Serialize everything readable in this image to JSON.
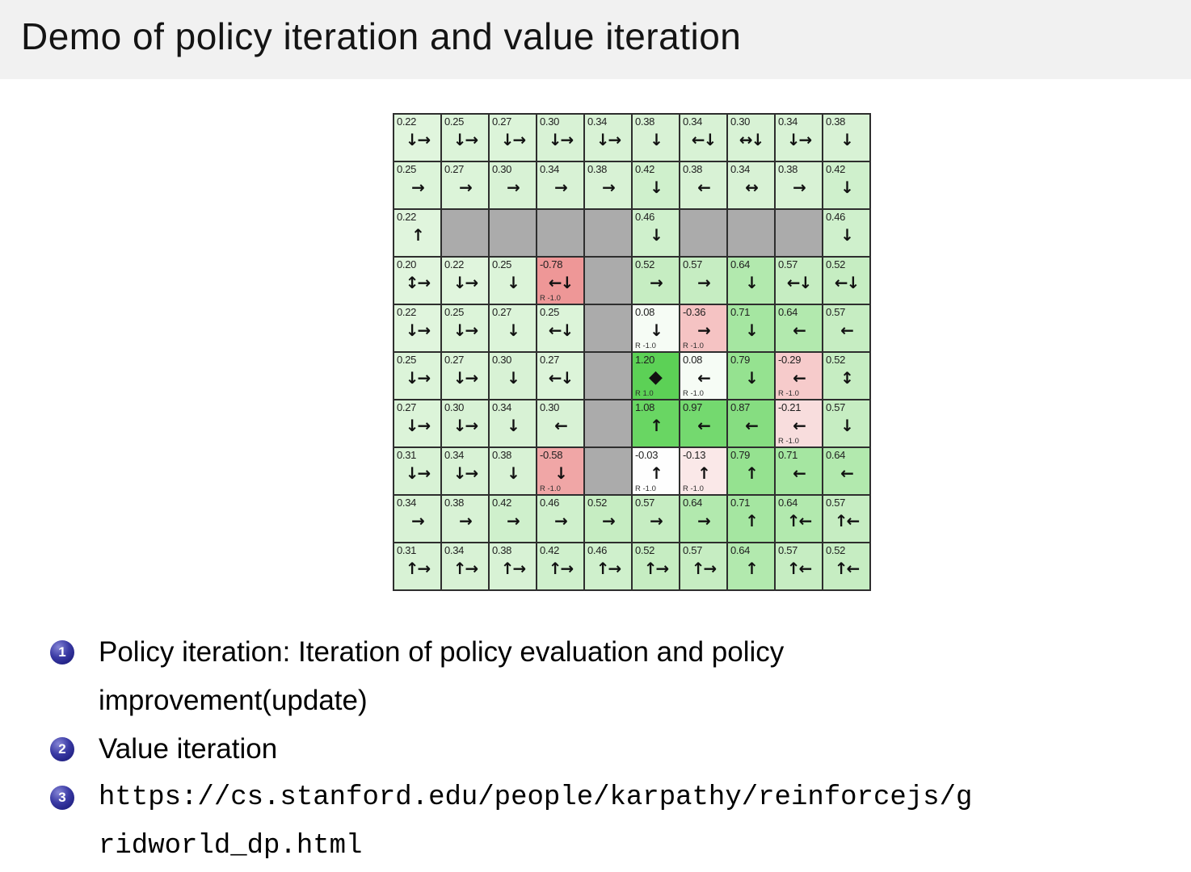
{
  "title": "Demo of policy iteration and value iteration",
  "bullets": [
    {
      "num": "1",
      "text": "Policy iteration: Iteration of policy evaluation and policy improvement(update)"
    },
    {
      "num": "2",
      "text": "Value iteration"
    },
    {
      "num": "3",
      "text": "https://cs.stanford.edu/people/karpathy/reinforcejs/gridworld_dp.html"
    }
  ],
  "colors": {
    "title_bar_bg": "#f1f1f1",
    "slide_bg": "#ffffff",
    "badge_blue": "#2b2b8f",
    "wall_gray": "#ababab",
    "grid_border": "#2e2e2e",
    "goal_green": "#5cd156",
    "penalty_red": "#ee9797"
  },
  "grid": {
    "rows": 10,
    "cols": 10,
    "cells": [
      {
        "v": "0.22",
        "a": [
          "down",
          "right"
        ],
        "bg": "#e0f5dd"
      },
      {
        "v": "0.25",
        "a": [
          "down",
          "right"
        ],
        "bg": "#dcf4d9"
      },
      {
        "v": "0.27",
        "a": [
          "down",
          "right"
        ],
        "bg": "#dcf4d9"
      },
      {
        "v": "0.30",
        "a": [
          "down",
          "right"
        ],
        "bg": "#d8f2d5"
      },
      {
        "v": "0.34",
        "a": [
          "down",
          "right"
        ],
        "bg": "#d8f2d5"
      },
      {
        "v": "0.38",
        "a": [
          "down"
        ],
        "bg": "#d8f2d5"
      },
      {
        "v": "0.34",
        "a": [
          "left",
          "down"
        ],
        "bg": "#d8f2d5"
      },
      {
        "v": "0.30",
        "a": [
          "left",
          "right",
          "down"
        ],
        "bg": "#d8f2d5"
      },
      {
        "v": "0.34",
        "a": [
          "down",
          "right"
        ],
        "bg": "#d8f2d5"
      },
      {
        "v": "0.38",
        "a": [
          "down"
        ],
        "bg": "#d8f2d5"
      },
      {
        "v": "0.25",
        "a": [
          "right"
        ],
        "bg": "#dcf4d9"
      },
      {
        "v": "0.27",
        "a": [
          "right"
        ],
        "bg": "#dcf4d9"
      },
      {
        "v": "0.30",
        "a": [
          "right"
        ],
        "bg": "#d8f2d5"
      },
      {
        "v": "0.34",
        "a": [
          "right"
        ],
        "bg": "#d8f2d5"
      },
      {
        "v": "0.38",
        "a": [
          "right"
        ],
        "bg": "#d8f2d5"
      },
      {
        "v": "0.42",
        "a": [
          "down"
        ],
        "bg": "#cff0cc"
      },
      {
        "v": "0.38",
        "a": [
          "left"
        ],
        "bg": "#d8f2d5"
      },
      {
        "v": "0.34",
        "a": [
          "left",
          "right"
        ],
        "bg": "#d8f2d5"
      },
      {
        "v": "0.38",
        "a": [
          "right"
        ],
        "bg": "#d8f2d5"
      },
      {
        "v": "0.42",
        "a": [
          "down"
        ],
        "bg": "#cff0cc"
      },
      {
        "v": "0.22",
        "a": [
          "up"
        ],
        "bg": "#e0f5dd"
      },
      {
        "wall": true,
        "bg": "#ababab"
      },
      {
        "wall": true,
        "bg": "#ababab"
      },
      {
        "wall": true,
        "bg": "#ababab"
      },
      {
        "wall": true,
        "bg": "#ababab"
      },
      {
        "v": "0.46",
        "a": [
          "down"
        ],
        "bg": "#cff0cc"
      },
      {
        "wall": true,
        "bg": "#ababab"
      },
      {
        "wall": true,
        "bg": "#ababab"
      },
      {
        "wall": true,
        "bg": "#ababab"
      },
      {
        "v": "0.46",
        "a": [
          "down"
        ],
        "bg": "#cff0cc"
      },
      {
        "v": "0.20",
        "a": [
          "up",
          "down",
          "right"
        ],
        "bg": "#e0f5dd"
      },
      {
        "v": "0.22",
        "a": [
          "down",
          "right"
        ],
        "bg": "#e0f5dd"
      },
      {
        "v": "0.25",
        "a": [
          "down"
        ],
        "bg": "#dcf4d9"
      },
      {
        "v": "-0.78",
        "a": [
          "left",
          "down"
        ],
        "r": "R -1.0",
        "bg": "#ee9797"
      },
      {
        "wall": true,
        "bg": "#ababab"
      },
      {
        "v": "0.52",
        "a": [
          "right"
        ],
        "bg": "#c6edc2"
      },
      {
        "v": "0.57",
        "a": [
          "right"
        ],
        "bg": "#c6edc2"
      },
      {
        "v": "0.64",
        "a": [
          "down"
        ],
        "bg": "#b2e9ae"
      },
      {
        "v": "0.57",
        "a": [
          "left",
          "down"
        ],
        "bg": "#c6edc2"
      },
      {
        "v": "0.52",
        "a": [
          "left",
          "down"
        ],
        "bg": "#c6edc2"
      },
      {
        "v": "0.22",
        "a": [
          "down",
          "right"
        ],
        "bg": "#e0f5dd"
      },
      {
        "v": "0.25",
        "a": [
          "down",
          "right"
        ],
        "bg": "#dcf4d9"
      },
      {
        "v": "0.27",
        "a": [
          "down"
        ],
        "bg": "#dcf4d9"
      },
      {
        "v": "0.25",
        "a": [
          "left",
          "down"
        ],
        "bg": "#dcf4d9"
      },
      {
        "wall": true,
        "bg": "#ababab"
      },
      {
        "v": "0.08",
        "a": [
          "down"
        ],
        "r": "R -1.0",
        "bg": "#f6fcf5"
      },
      {
        "v": "-0.36",
        "a": [
          "right"
        ],
        "r": "R -1.0",
        "bg": "#f5c3c3"
      },
      {
        "v": "0.71",
        "a": [
          "down"
        ],
        "bg": "#a5e6a1"
      },
      {
        "v": "0.64",
        "a": [
          "left"
        ],
        "bg": "#b2e9ae"
      },
      {
        "v": "0.57",
        "a": [
          "left"
        ],
        "bg": "#c6edc2"
      },
      {
        "v": "0.25",
        "a": [
          "down",
          "right"
        ],
        "bg": "#dcf4d9"
      },
      {
        "v": "0.27",
        "a": [
          "down",
          "right"
        ],
        "bg": "#dcf4d9"
      },
      {
        "v": "0.30",
        "a": [
          "down"
        ],
        "bg": "#d8f2d5"
      },
      {
        "v": "0.27",
        "a": [
          "left",
          "down"
        ],
        "bg": "#dcf4d9"
      },
      {
        "wall": true,
        "bg": "#ababab"
      },
      {
        "v": "1.20",
        "star": true,
        "r": "R 1.0",
        "bg": "#5cd156"
      },
      {
        "v": "0.08",
        "a": [
          "left"
        ],
        "r": "R -1.0",
        "bg": "#f6fcf5"
      },
      {
        "v": "0.79",
        "a": [
          "down"
        ],
        "bg": "#95e290"
      },
      {
        "v": "-0.29",
        "a": [
          "left"
        ],
        "r": "R -1.0",
        "bg": "#f6cbcb"
      },
      {
        "v": "0.52",
        "a": [
          "up",
          "down"
        ],
        "bg": "#c6edc2"
      },
      {
        "v": "0.27",
        "a": [
          "down",
          "right"
        ],
        "bg": "#dcf4d9"
      },
      {
        "v": "0.30",
        "a": [
          "down",
          "right"
        ],
        "bg": "#d8f2d5"
      },
      {
        "v": "0.34",
        "a": [
          "down"
        ],
        "bg": "#d8f2d5"
      },
      {
        "v": "0.30",
        "a": [
          "left"
        ],
        "bg": "#d8f2d5"
      },
      {
        "wall": true,
        "bg": "#ababab"
      },
      {
        "v": "1.08",
        "a": [
          "up"
        ],
        "bg": "#69d663"
      },
      {
        "v": "0.97",
        "a": [
          "left"
        ],
        "bg": "#74d96f"
      },
      {
        "v": "0.87",
        "a": [
          "left"
        ],
        "bg": "#86dd81"
      },
      {
        "v": "-0.21",
        "a": [
          "left"
        ],
        "r": "R -1.0",
        "bg": "#f8dddd"
      },
      {
        "v": "0.57",
        "a": [
          "down"
        ],
        "bg": "#c6edc2"
      },
      {
        "v": "0.31",
        "a": [
          "down",
          "right"
        ],
        "bg": "#d8f2d5"
      },
      {
        "v": "0.34",
        "a": [
          "down",
          "right"
        ],
        "bg": "#d8f2d5"
      },
      {
        "v": "0.38",
        "a": [
          "down"
        ],
        "bg": "#d8f2d5"
      },
      {
        "v": "-0.58",
        "a": [
          "down"
        ],
        "r": "R -1.0",
        "bg": "#f0a6a6"
      },
      {
        "wall": true,
        "bg": "#ababab"
      },
      {
        "v": "-0.03",
        "a": [
          "up"
        ],
        "r": "R -1.0",
        "bg": "#fefefe"
      },
      {
        "v": "-0.13",
        "a": [
          "up"
        ],
        "r": "R -1.0",
        "bg": "#fae8e8"
      },
      {
        "v": "0.79",
        "a": [
          "up"
        ],
        "bg": "#95e290"
      },
      {
        "v": "0.71",
        "a": [
          "left"
        ],
        "bg": "#a5e6a1"
      },
      {
        "v": "0.64",
        "a": [
          "left"
        ],
        "bg": "#b2e9ae"
      },
      {
        "v": "0.34",
        "a": [
          "right"
        ],
        "bg": "#d8f2d5"
      },
      {
        "v": "0.38",
        "a": [
          "right"
        ],
        "bg": "#d8f2d5"
      },
      {
        "v": "0.42",
        "a": [
          "right"
        ],
        "bg": "#cff0cc"
      },
      {
        "v": "0.46",
        "a": [
          "right"
        ],
        "bg": "#cff0cc"
      },
      {
        "v": "0.52",
        "a": [
          "right"
        ],
        "bg": "#c6edc2"
      },
      {
        "v": "0.57",
        "a": [
          "right"
        ],
        "bg": "#c6edc2"
      },
      {
        "v": "0.64",
        "a": [
          "right"
        ],
        "bg": "#b2e9ae"
      },
      {
        "v": "0.71",
        "a": [
          "up"
        ],
        "bg": "#a5e6a1"
      },
      {
        "v": "0.64",
        "a": [
          "up",
          "left"
        ],
        "bg": "#b2e9ae"
      },
      {
        "v": "0.57",
        "a": [
          "up",
          "left"
        ],
        "bg": "#c6edc2"
      },
      {
        "v": "0.31",
        "a": [
          "up",
          "right"
        ],
        "bg": "#d8f2d5"
      },
      {
        "v": "0.34",
        "a": [
          "up",
          "right"
        ],
        "bg": "#d8f2d5"
      },
      {
        "v": "0.38",
        "a": [
          "up",
          "right"
        ],
        "bg": "#d8f2d5"
      },
      {
        "v": "0.42",
        "a": [
          "up",
          "right"
        ],
        "bg": "#cff0cc"
      },
      {
        "v": "0.46",
        "a": [
          "up",
          "right"
        ],
        "bg": "#cff0cc"
      },
      {
        "v": "0.52",
        "a": [
          "up",
          "right"
        ],
        "bg": "#c6edc2"
      },
      {
        "v": "0.57",
        "a": [
          "up",
          "right"
        ],
        "bg": "#c6edc2"
      },
      {
        "v": "0.64",
        "a": [
          "up"
        ],
        "bg": "#b2e9ae"
      },
      {
        "v": "0.57",
        "a": [
          "up",
          "left"
        ],
        "bg": "#c6edc2"
      },
      {
        "v": "0.52",
        "a": [
          "up",
          "left"
        ],
        "bg": "#c6edc2"
      }
    ]
  }
}
